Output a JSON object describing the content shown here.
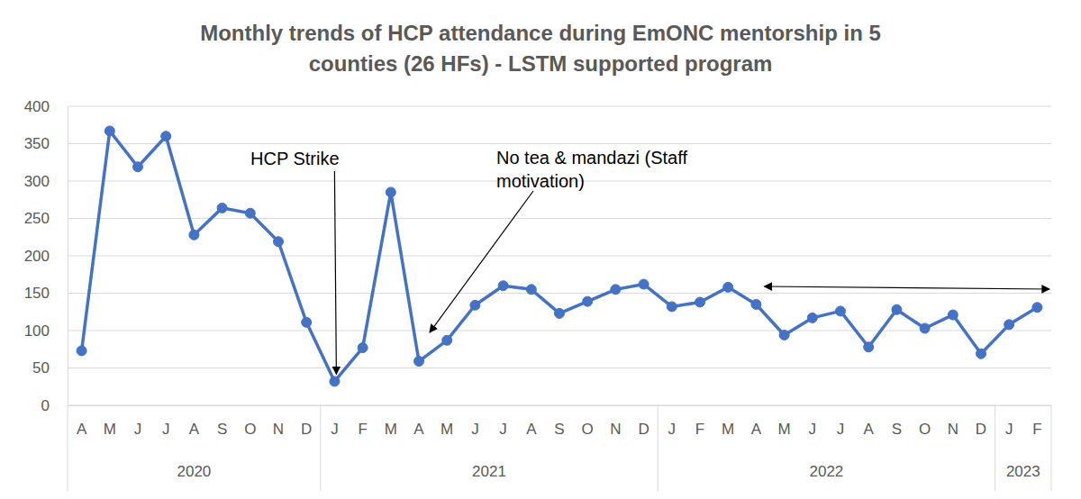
{
  "chart_data": {
    "type": "line",
    "title": "Monthly trends of HCP attendance during EmONC mentorship in 5\ncounties (26 HFs) - LSTM supported program",
    "categories": [
      "A",
      "M",
      "J",
      "J",
      "A",
      "S",
      "O",
      "N",
      "D",
      "J",
      "F",
      "M",
      "A",
      "M",
      "J",
      "J",
      "A",
      "S",
      "O",
      "N",
      "D",
      "J",
      "F",
      "M",
      "A",
      "M",
      "J",
      "J",
      "A",
      "S",
      "O",
      "N",
      "D",
      "J",
      "F"
    ],
    "category_groups": [
      {
        "label": "2020",
        "span": 9
      },
      {
        "label": "2021",
        "span": 12
      },
      {
        "label": "2022",
        "span": 12
      },
      {
        "label": "2023",
        "span": 2
      }
    ],
    "values": [
      73,
      367,
      319,
      360,
      228,
      264,
      257,
      219,
      111,
      32,
      77,
      285,
      59,
      87,
      134,
      160,
      155,
      123,
      139,
      155,
      162,
      132,
      138,
      158,
      135,
      94,
      117,
      126,
      78,
      128,
      103,
      121,
      69,
      108,
      131
    ],
    "color": "#4472c4",
    "marker": "circle",
    "line_style": "solid",
    "ylim": [
      0,
      400
    ],
    "yticks": [
      0,
      50,
      100,
      150,
      200,
      250,
      300,
      350,
      400
    ],
    "grid": true,
    "annotations": [
      "HCP Strike",
      "No tea & mandazi (Staff\nmotivation)"
    ]
  }
}
